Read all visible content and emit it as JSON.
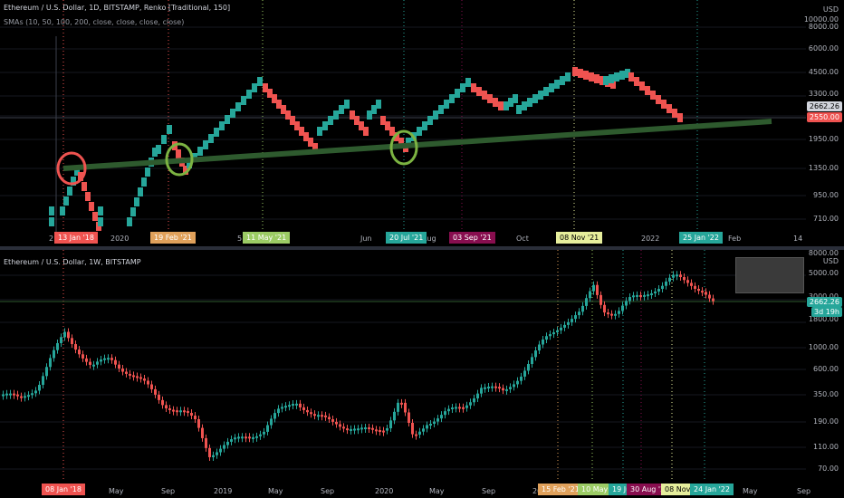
{
  "top": {
    "title": "Ethereum / U.S. Dollar, 1D, BITSTAMP, Renko [Traditional, 150]",
    "indicator": "SMAs (10, 50, 100, 200, close, close, close, close)",
    "y_unit": "USD",
    "y_ticks": [
      "12000.00",
      "10000.00",
      "8000.00",
      "6000.00",
      "4500.00",
      "3300.00",
      "1950.00",
      "1350.00",
      "950.00",
      "710.00"
    ],
    "price_tags": [
      {
        "text": "2662.26",
        "color": "#000000",
        "bg": "#d1d4dc"
      },
      {
        "text": "2550.00",
        "color": "#ffffff",
        "bg": "#ef5350"
      }
    ],
    "x_labels": [
      "2",
      "2020",
      "5",
      "17",
      "Jun",
      "Aug",
      "Oct",
      "2022",
      "Feb",
      "14"
    ],
    "date_tags": [
      {
        "text": "13 Jan '18",
        "bg": "#ef5350"
      },
      {
        "text": "19 Feb '21",
        "bg": "#e0a15b"
      },
      {
        "text": "11 May '21",
        "bg": "#9ccc65"
      },
      {
        "text": "20 Jul '21",
        "bg": "#26a69a"
      },
      {
        "text": "03 Sep '21",
        "bg": "#880e4f"
      },
      {
        "text": "08 Nov '21",
        "bg": "#e6ee9c"
      },
      {
        "text": "25 Jan '22",
        "bg": "#26a69a"
      }
    ]
  },
  "bottom": {
    "title": "Ethereum / U.S. Dollar, 1W, BITSTAMP",
    "y_unit": "USD",
    "y_ticks": [
      "8000.00",
      "5000.00",
      "3000.00",
      "1800.00",
      "1000.00",
      "600.00",
      "350.00",
      "190.00",
      "110.00",
      "70.00"
    ],
    "price_tags": [
      {
        "text": "2662.26",
        "bg": "#26a69a"
      },
      {
        "text": "3d 19h",
        "bg": "#26a69a"
      }
    ],
    "x_labels": [
      "May",
      "Sep",
      "2019",
      "May",
      "Sep",
      "2020",
      "May",
      "Sep",
      "20",
      "May",
      "Sep"
    ],
    "date_tags": [
      {
        "text": "08 Jan '18",
        "bg": "#ef5350"
      },
      {
        "text": "15 Feb '21",
        "bg": "#e0a15b"
      },
      {
        "text": "10 May '21",
        "bg": "#9ccc65"
      },
      {
        "text": "19 Ju",
        "bg": "#26a69a"
      },
      {
        "text": "30 Aug '21",
        "bg": "#880e4f"
      },
      {
        "text": "08 Nov '21",
        "bg": "#e6ee9c"
      },
      {
        "text": "24 Jan '22",
        "bg": "#26a69a"
      }
    ]
  },
  "colors": {
    "up": "#26a69a",
    "down": "#ef5350",
    "trend": "#2e5a2e"
  }
}
